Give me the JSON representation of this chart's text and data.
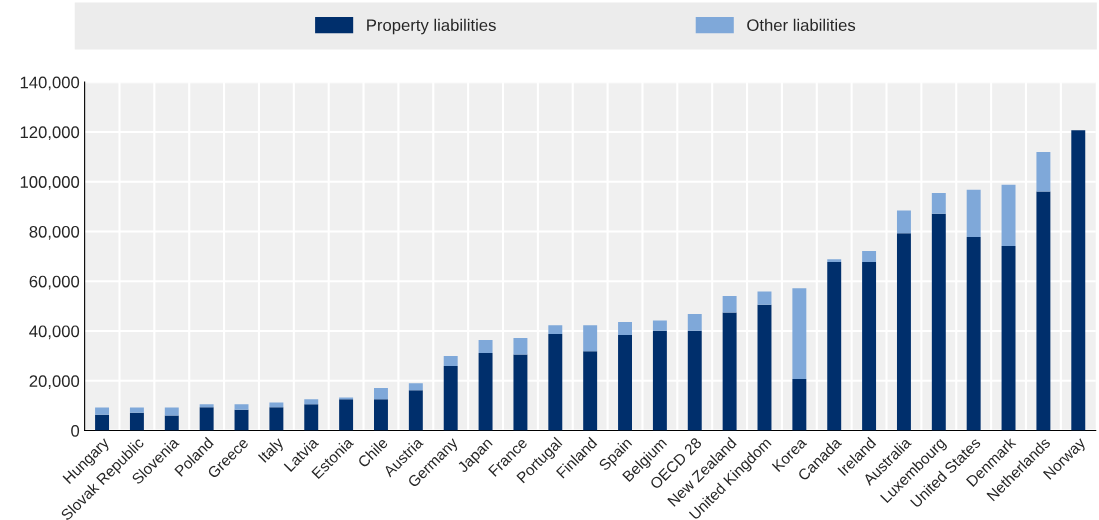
{
  "chart_data": {
    "type": "bar",
    "stacked": true,
    "categories": [
      "Hungary",
      "Slovak Republic",
      "Slovenia",
      "Poland",
      "Greece",
      "Italy",
      "Latvia",
      "Estonia",
      "Chile",
      "Austria",
      "Germany",
      "Japan",
      "France",
      "Portugal",
      "Finland",
      "Spain",
      "Belgium",
      "OECD 28",
      "New Zealand",
      "United Kingdom",
      "Korea",
      "Canada",
      "Ireland",
      "Australia",
      "Luxembourg",
      "United States",
      "Denmark",
      "Netherlands",
      "Norway"
    ],
    "series": [
      {
        "name": "Property liabilities",
        "color": "#002f6c",
        "values": [
          6400,
          7200,
          6100,
          9400,
          8400,
          9400,
          10600,
          12600,
          12600,
          16200,
          25900,
          31200,
          30600,
          38800,
          31900,
          38400,
          40100,
          40100,
          47400,
          50600,
          20700,
          67700,
          67700,
          79300,
          87100,
          77800,
          74200,
          96100,
          120700
        ]
      },
      {
        "name": "Other liabilities",
        "color": "#7fa8d9",
        "values": [
          2900,
          2100,
          3200,
          1200,
          2200,
          1900,
          2000,
          700,
          4500,
          2800,
          4100,
          5200,
          6600,
          3500,
          10400,
          5200,
          4100,
          6700,
          6700,
          5300,
          36500,
          1100,
          4500,
          9100,
          8400,
          19000,
          24600,
          15800,
          null
        ]
      }
    ],
    "ylim": [
      0,
      140000
    ],
    "yticks": [
      {
        "value": 0,
        "label": "0"
      },
      {
        "value": 20000,
        "label": "20,000"
      },
      {
        "value": 40000,
        "label": "40,000"
      },
      {
        "value": 60000,
        "label": "60,000"
      },
      {
        "value": 80000,
        "label": "80,000"
      },
      {
        "value": 100000,
        "label": "100,000"
      },
      {
        "value": 120000,
        "label": "120,000"
      },
      {
        "value": 140000,
        "label": "140,000"
      }
    ],
    "grid": true,
    "legend": "top"
  }
}
